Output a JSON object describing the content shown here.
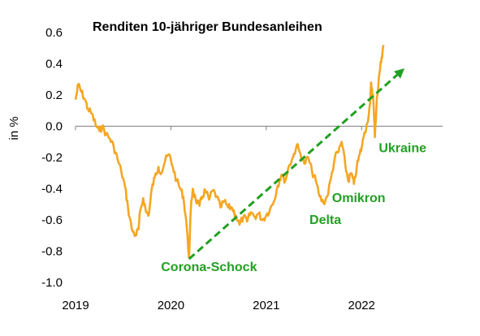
{
  "chart_data": {
    "type": "line",
    "title": "Renditen 10-jähriger Bundesanleihen",
    "xlabel": "",
    "ylabel": "in %",
    "xlim": [
      2019.0,
      2022.85
    ],
    "ylim": [
      -1.0,
      0.6
    ],
    "grid": false,
    "x_ticks": [
      {
        "value": 2019,
        "label": "2019"
      },
      {
        "value": 2020,
        "label": "2020"
      },
      {
        "value": 2021,
        "label": "2021"
      },
      {
        "value": 2022,
        "label": "2022"
      }
    ],
    "y_ticks": [
      {
        "value": 0.6,
        "label": "0.6"
      },
      {
        "value": 0.4,
        "label": "0.4"
      },
      {
        "value": 0.2,
        "label": "0.2"
      },
      {
        "value": 0.0,
        "label": "0.0"
      },
      {
        "value": -0.2,
        "label": "-0.2"
      },
      {
        "value": -0.4,
        "label": "-0.4"
      },
      {
        "value": -0.6,
        "label": "-0.6"
      },
      {
        "value": -0.8,
        "label": "-0.8"
      },
      {
        "value": -1.0,
        "label": "-1.0"
      }
    ],
    "series": [
      {
        "color": "#f5a623",
        "points": [
          [
            2019.0,
            0.17
          ],
          [
            2019.03,
            0.27
          ],
          [
            2019.06,
            0.22
          ],
          [
            2019.1,
            0.17
          ],
          [
            2019.13,
            0.11
          ],
          [
            2019.17,
            0.08
          ],
          [
            2019.21,
            0.01
          ],
          [
            2019.25,
            -0.03
          ],
          [
            2019.28,
            0.0
          ],
          [
            2019.32,
            -0.05
          ],
          [
            2019.36,
            -0.08
          ],
          [
            2019.4,
            -0.13
          ],
          [
            2019.44,
            -0.21
          ],
          [
            2019.48,
            -0.29
          ],
          [
            2019.52,
            -0.39
          ],
          [
            2019.55,
            -0.52
          ],
          [
            2019.59,
            -0.66
          ],
          [
            2019.63,
            -0.7
          ],
          [
            2019.66,
            -0.66
          ],
          [
            2019.68,
            -0.54
          ],
          [
            2019.71,
            -0.46
          ],
          [
            2019.74,
            -0.55
          ],
          [
            2019.77,
            -0.56
          ],
          [
            2019.8,
            -0.4
          ],
          [
            2019.83,
            -0.33
          ],
          [
            2019.87,
            -0.26
          ],
          [
            2019.9,
            -0.3
          ],
          [
            2019.94,
            -0.22
          ],
          [
            2019.98,
            -0.18
          ],
          [
            2020.02,
            -0.26
          ],
          [
            2020.06,
            -0.35
          ],
          [
            2020.1,
            -0.4
          ],
          [
            2020.13,
            -0.45
          ],
          [
            2020.16,
            -0.6
          ],
          [
            2020.19,
            -0.84
          ],
          [
            2020.21,
            -0.52
          ],
          [
            2020.23,
            -0.4
          ],
          [
            2020.26,
            -0.47
          ],
          [
            2020.3,
            -0.51
          ],
          [
            2020.33,
            -0.45
          ],
          [
            2020.36,
            -0.41
          ],
          [
            2020.4,
            -0.47
          ],
          [
            2020.44,
            -0.41
          ],
          [
            2020.48,
            -0.45
          ],
          [
            2020.52,
            -0.52
          ],
          [
            2020.56,
            -0.48
          ],
          [
            2020.6,
            -0.52
          ],
          [
            2020.64,
            -0.52
          ],
          [
            2020.68,
            -0.57
          ],
          [
            2020.72,
            -0.63
          ],
          [
            2020.76,
            -0.58
          ],
          [
            2020.8,
            -0.61
          ],
          [
            2020.84,
            -0.55
          ],
          [
            2020.88,
            -0.58
          ],
          [
            2020.92,
            -0.56
          ],
          [
            2020.96,
            -0.6
          ],
          [
            2021.0,
            -0.57
          ],
          [
            2021.04,
            -0.53
          ],
          [
            2021.08,
            -0.48
          ],
          [
            2021.12,
            -0.38
          ],
          [
            2021.16,
            -0.31
          ],
          [
            2021.2,
            -0.35
          ],
          [
            2021.24,
            -0.25
          ],
          [
            2021.28,
            -0.2
          ],
          [
            2021.32,
            -0.12
          ],
          [
            2021.36,
            -0.18
          ],
          [
            2021.4,
            -0.24
          ],
          [
            2021.44,
            -0.2
          ],
          [
            2021.48,
            -0.29
          ],
          [
            2021.52,
            -0.35
          ],
          [
            2021.56,
            -0.45
          ],
          [
            2021.6,
            -0.49
          ],
          [
            2021.64,
            -0.45
          ],
          [
            2021.68,
            -0.33
          ],
          [
            2021.72,
            -0.2
          ],
          [
            2021.76,
            -0.16
          ],
          [
            2021.79,
            -0.1
          ],
          [
            2021.83,
            -0.25
          ],
          [
            2021.86,
            -0.35
          ],
          [
            2021.89,
            -0.3
          ],
          [
            2021.92,
            -0.37
          ],
          [
            2021.95,
            -0.26
          ],
          [
            2021.98,
            -0.18
          ],
          [
            2022.0,
            -0.14
          ],
          [
            2022.03,
            -0.04
          ],
          [
            2022.06,
            0.02
          ],
          [
            2022.09,
            0.15
          ],
          [
            2022.1,
            0.28
          ],
          [
            2022.12,
            0.2
          ],
          [
            2022.14,
            -0.07
          ],
          [
            2022.16,
            0.18
          ],
          [
            2022.19,
            0.35
          ],
          [
            2022.21,
            0.44
          ],
          [
            2022.23,
            0.52
          ]
        ]
      }
    ],
    "trend_arrow": {
      "color": "#22a022",
      "from": [
        2020.19,
        -0.85
      ],
      "to": [
        2022.45,
        0.37
      ]
    },
    "annotations": [
      {
        "text": "Corona-Schock",
        "x": 2020.4,
        "y": -0.9,
        "color": "#22a022"
      },
      {
        "text": "Delta",
        "x": 2021.62,
        "y": -0.6,
        "color": "#22a022"
      },
      {
        "text": "Omikron",
        "x": 2021.97,
        "y": -0.46,
        "color": "#22a022"
      },
      {
        "text": "Ukraine",
        "x": 2022.43,
        "y": -0.14,
        "color": "#22a022"
      }
    ]
  }
}
